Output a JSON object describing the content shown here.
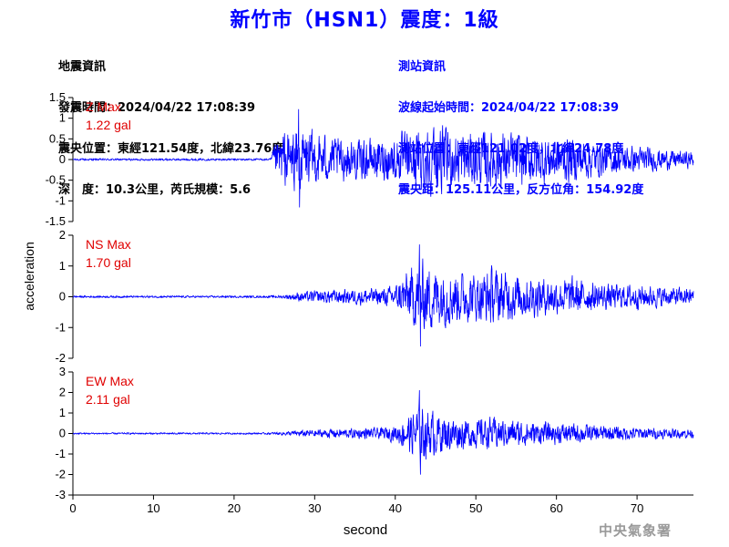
{
  "title": "新竹市（HSN1）震度：1級",
  "earthquake_info": {
    "heading": "地震資訊",
    "origin_time": "發震時間：2024/04/22 17:08:39",
    "epicenter": "震央位置：東經121.54度，北緯23.76度",
    "depth_magnitude": "深　度：10.3公里，芮氏規模：5.6"
  },
  "station_info": {
    "heading": "測站資訊",
    "wave_start": "波線起始時間：2024/04/22 17:08:39",
    "station_location": "測站位置：東經121.02度，北緯24.78度",
    "distance_azimuth": "震央距：125.11公里，反方位角：154.92度"
  },
  "agency": "中央氣象署",
  "colors": {
    "title": "#0000ff",
    "trace": "#0000ff",
    "max_label": "#e00000",
    "axis": "#000000",
    "agency": "#9a9a9a"
  },
  "chart_data": {
    "type": "line",
    "xlabel": "second",
    "ylabel": "acceleration",
    "xlim": [
      0,
      77
    ],
    "xticks": [
      0,
      10,
      20,
      30,
      40,
      50,
      60,
      70
    ],
    "grid": false,
    "panels": [
      {
        "component": "Z",
        "max_label": "Z Max",
        "max_value": "1.22 gal",
        "ylim": [
          -1.5,
          1.5
        ],
        "yticks": [
          -1.5,
          -1,
          -0.5,
          0,
          0.5,
          1,
          1.5
        ],
        "ytick_labels": [
          "-1.5",
          "-1",
          "-0.5",
          "0",
          "0.5",
          "1",
          "1.5"
        ],
        "peak": 1.22,
        "envelope": {
          "t": [
            0,
            24.5,
            25,
            26,
            28,
            30,
            32,
            34,
            36,
            38,
            40,
            42,
            44,
            46,
            48,
            50,
            52,
            54,
            56,
            58,
            60,
            62,
            64,
            66,
            68,
            70,
            72,
            74,
            77
          ],
          "amp": [
            0.03,
            0.03,
            0.45,
            0.85,
            1.05,
            0.85,
            0.7,
            0.65,
            0.6,
            0.65,
            0.7,
            0.9,
            1.0,
            0.95,
            0.9,
            0.85,
            0.9,
            0.85,
            0.8,
            0.75,
            0.7,
            0.7,
            0.6,
            0.5,
            0.45,
            0.4,
            0.35,
            0.3,
            0.25
          ]
        }
      },
      {
        "component": "NS",
        "max_label": "NS Max",
        "max_value": "1.70 gal",
        "ylim": [
          -2,
          2
        ],
        "yticks": [
          -2,
          -1,
          0,
          1,
          2
        ],
        "ytick_labels": [
          "-2",
          "-1",
          "0",
          "1",
          "2"
        ],
        "peak": 1.7,
        "envelope": {
          "t": [
            0,
            24,
            26,
            28,
            30,
            32,
            34,
            36,
            38,
            40,
            41,
            42,
            43,
            44,
            46,
            48,
            50,
            52,
            54,
            56,
            58,
            60,
            62,
            64,
            66,
            68,
            70,
            72,
            74,
            77
          ],
          "amp": [
            0.04,
            0.04,
            0.06,
            0.2,
            0.25,
            0.3,
            0.3,
            0.35,
            0.35,
            0.45,
            0.9,
            1.2,
            1.6,
            1.4,
            1.2,
            1.1,
            1.0,
            1.2,
            1.0,
            0.9,
            0.8,
            0.7,
            0.8,
            0.6,
            0.55,
            0.5,
            0.5,
            0.45,
            0.4,
            0.35
          ]
        }
      },
      {
        "component": "EW",
        "max_label": "EW Max",
        "max_value": "2.11 gal",
        "ylim": [
          -3,
          3
        ],
        "yticks": [
          -3,
          -2,
          -1,
          0,
          1,
          2,
          3
        ],
        "ytick_labels": [
          "-3",
          "-2",
          "-1",
          "0",
          "1",
          "2",
          "3"
        ],
        "peak": 2.11,
        "envelope": {
          "t": [
            0,
            24,
            26,
            28,
            30,
            32,
            34,
            36,
            38,
            40,
            41,
            42,
            43,
            44,
            46,
            48,
            50,
            52,
            54,
            56,
            58,
            60,
            62,
            64,
            66,
            68,
            70,
            72,
            74,
            77
          ],
          "amp": [
            0.05,
            0.05,
            0.1,
            0.2,
            0.25,
            0.3,
            0.3,
            0.35,
            0.35,
            0.5,
            0.9,
            1.3,
            1.8,
            1.5,
            1.2,
            1.0,
            0.9,
            1.0,
            0.85,
            0.8,
            0.7,
            0.65,
            0.6,
            0.55,
            0.5,
            0.45,
            0.4,
            0.35,
            0.3,
            0.3
          ]
        }
      }
    ]
  }
}
